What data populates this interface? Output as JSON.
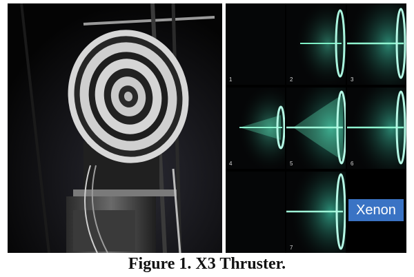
{
  "figure": {
    "caption": "Figure 1. X3 Thruster.",
    "gas_label": "Xenon",
    "panels": [
      {
        "number": "1"
      },
      {
        "number": "2"
      },
      {
        "number": "3"
      },
      {
        "number": "4"
      },
      {
        "number": "5"
      },
      {
        "number": "6"
      },
      {
        "number": "7"
      }
    ]
  },
  "colors": {
    "plume": "#5fe3b6",
    "label_bg": "#3a73c4",
    "background": "#000000"
  }
}
